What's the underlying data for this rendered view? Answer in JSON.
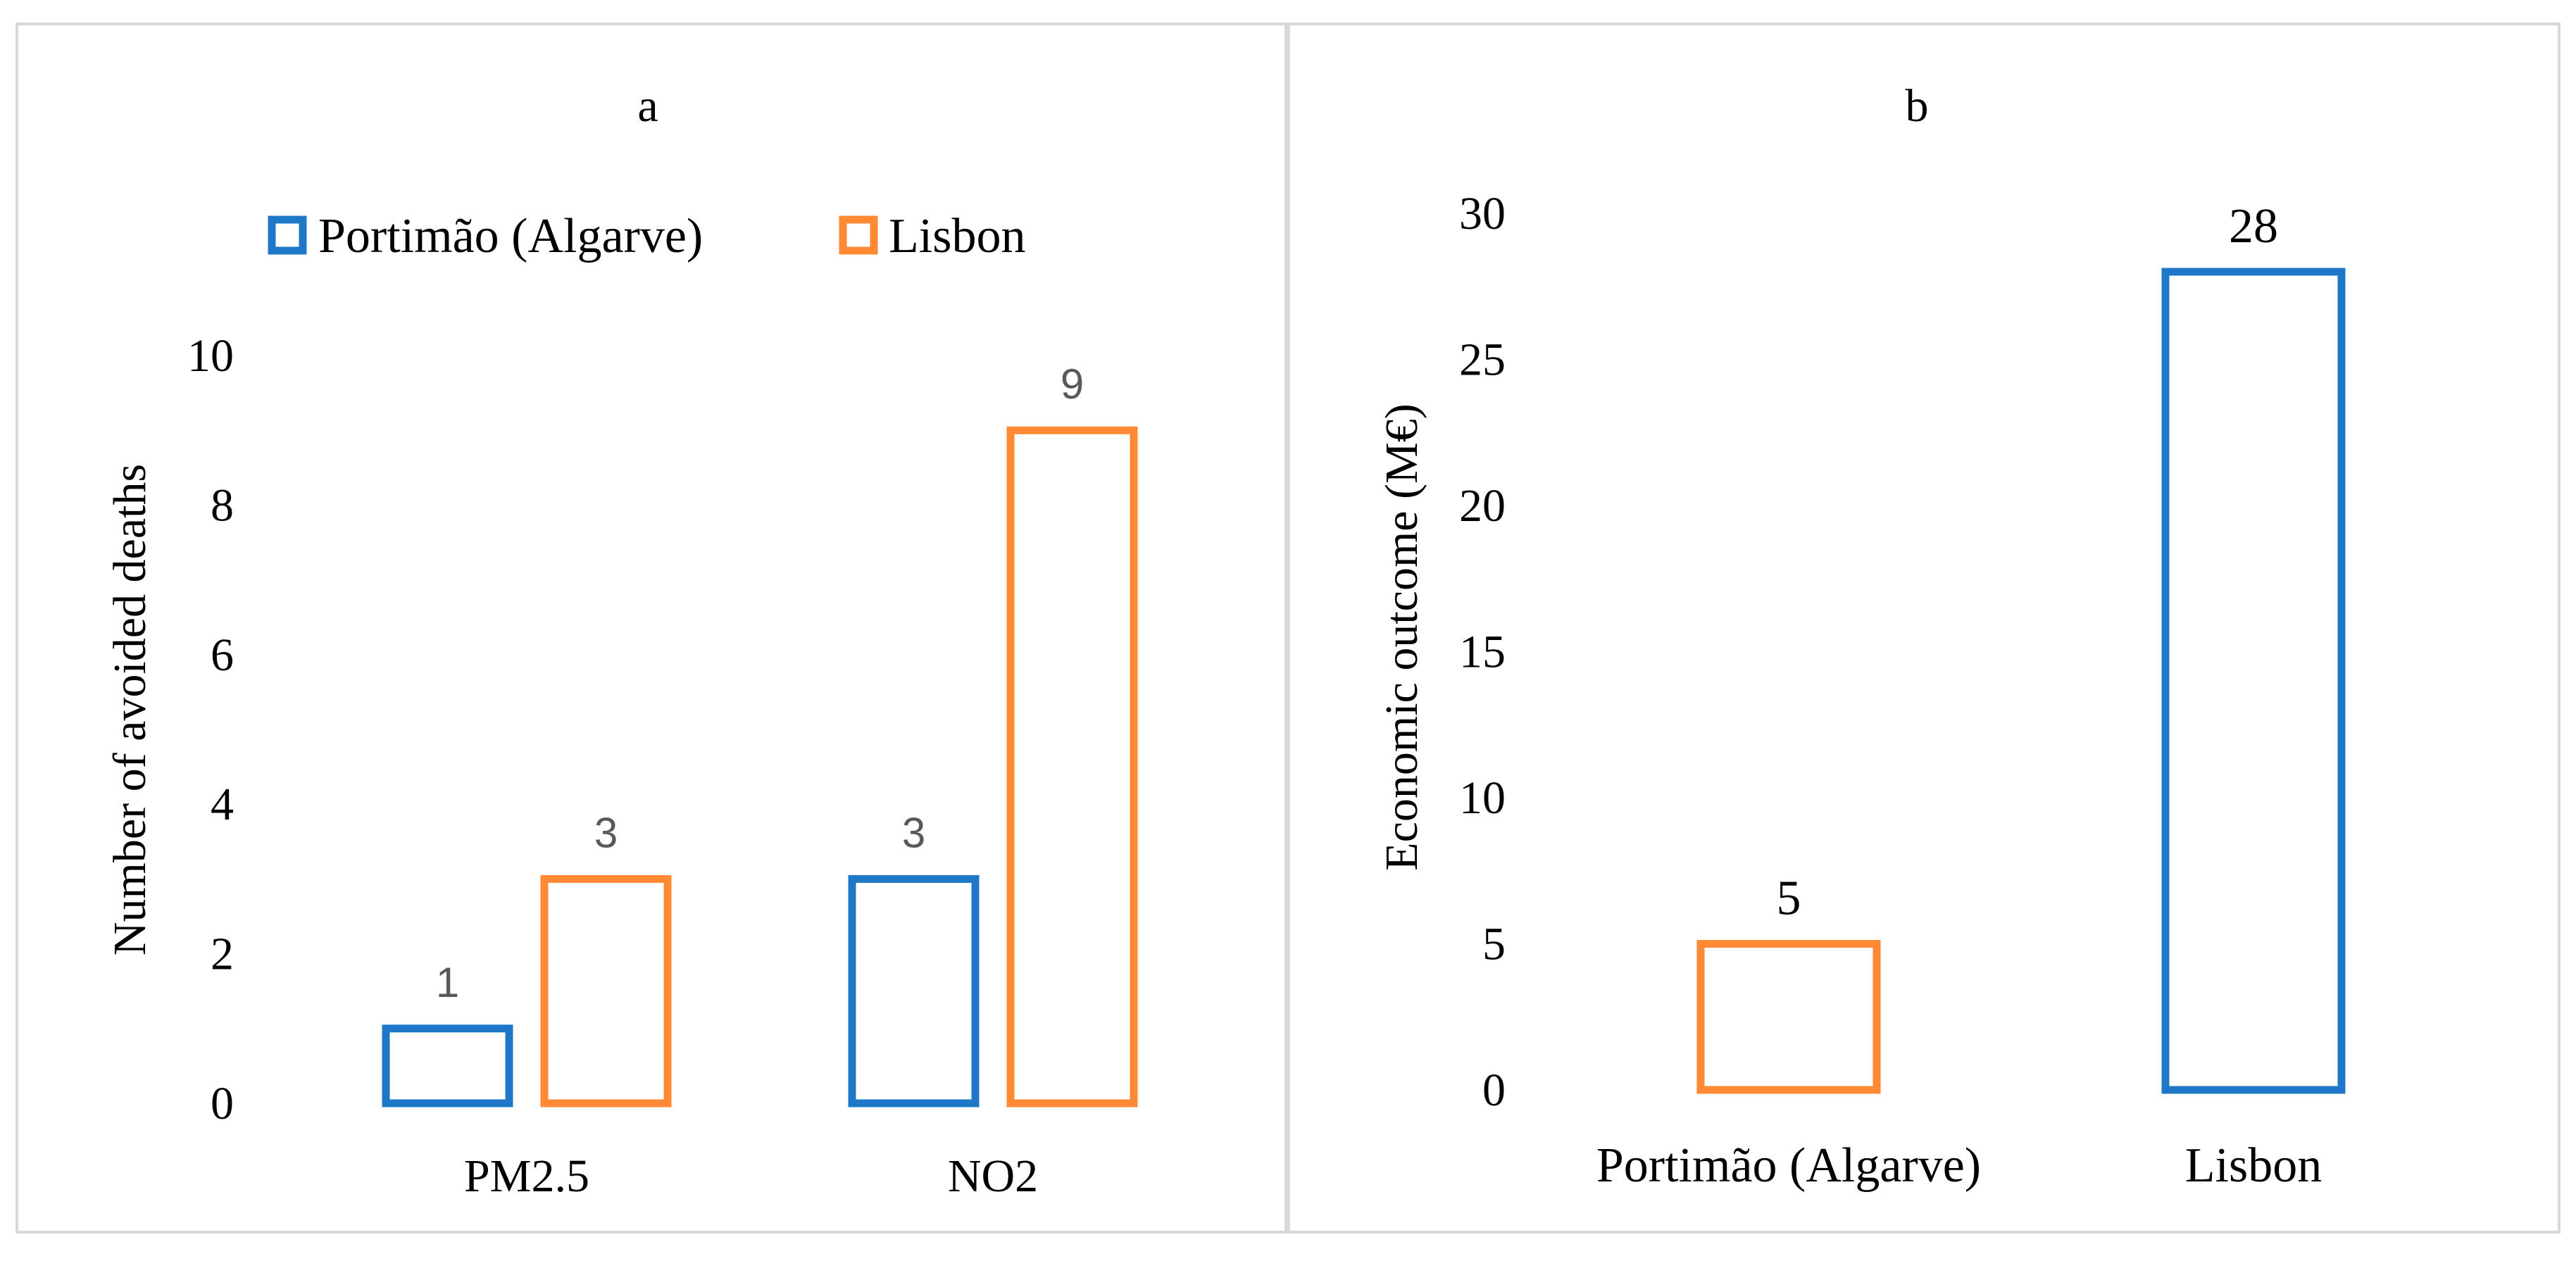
{
  "chart_data": [
    {
      "type": "bar",
      "title": "a",
      "categories": [
        "PM2.5",
        "NO2"
      ],
      "series": [
        {
          "name": "Portimão (Algarve)",
          "values": [
            1,
            3
          ],
          "color": "#1f77c8"
        },
        {
          "name": "Lisbon",
          "values": [
            3,
            9
          ],
          "color": "#ff8a33"
        }
      ],
      "data_labels": [
        "1",
        "3",
        "3",
        "9"
      ],
      "xlabel": "",
      "ylabel": "Number of avoided deaths",
      "ylim": [
        0,
        10
      ],
      "yticks": [
        "0",
        "2",
        "4",
        "6",
        "8",
        "10"
      ],
      "legend": "top-left",
      "grid": false
    },
    {
      "type": "bar",
      "title": "b",
      "categories": [
        "Portimão (Algarve)",
        "Lisbon"
      ],
      "values": [
        5,
        28
      ],
      "colors": [
        "#ff8a33",
        "#1f77c8"
      ],
      "data_labels": [
        "5",
        "28"
      ],
      "xlabel": "",
      "ylabel": "Economic outcome (M€)",
      "ylim": [
        0,
        30
      ],
      "yticks": [
        "0",
        "5",
        "10",
        "15",
        "20",
        "25",
        "30"
      ],
      "grid": false
    }
  ]
}
